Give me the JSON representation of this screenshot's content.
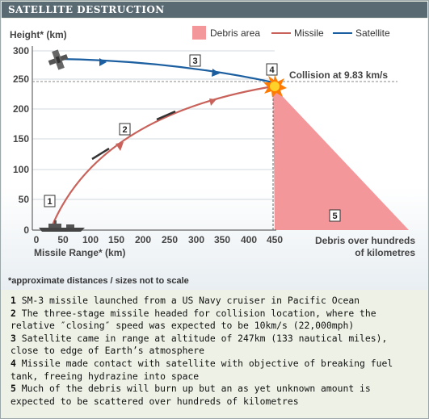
{
  "title": "SATELLITE DESTRUCTION",
  "legend": {
    "debris": "Debris area",
    "missile": "Missile",
    "satellite": "Satellite"
  },
  "colors": {
    "debris": "#f4979a",
    "missile": "#c9625a",
    "satellite": "#1c5fa0",
    "header": "#596a72",
    "axis": "#666666"
  },
  "axes": {
    "y_label": "Height* (km)",
    "x_label": "Missile Range* (km)",
    "y_ticks": [
      "0",
      "50",
      "100",
      "150",
      "200",
      "250",
      "300"
    ],
    "x_ticks": [
      "0",
      "50",
      "100",
      "150",
      "200",
      "250",
      "300",
      "350",
      "400",
      "450"
    ],
    "debris_range_line1": "Debris over hundreds",
    "debris_range_line2": "of kilometres"
  },
  "collision_label": "Collision at 9.83 km/s",
  "markers": [
    "1",
    "2",
    "3",
    "4",
    "5"
  ],
  "footnote": "*approximate distances / sizes not to scale",
  "notes": [
    {
      "num": "1",
      "text": "SM-3 missile launched from a US Navy cruiser in Pacific Ocean"
    },
    {
      "num": "2",
      "text": "The three-stage missile headed for collision location, where the relative ″closing″ speed was expected to be 10km/s (22,000mph)"
    },
    {
      "num": "3",
      "text": "Satellite came in range at altitude of 247km (133 nautical miles), close to edge of Earth’s atmosphere"
    },
    {
      "num": "4",
      "text": "Missile made contact with satellite with objective of breaking fuel tank, freeing hydrazine into space"
    },
    {
      "num": "5",
      "text": "Much of the debris will burn up but an as yet unknown amount is expected to be scattered over hundreds of kilometres"
    }
  ]
}
